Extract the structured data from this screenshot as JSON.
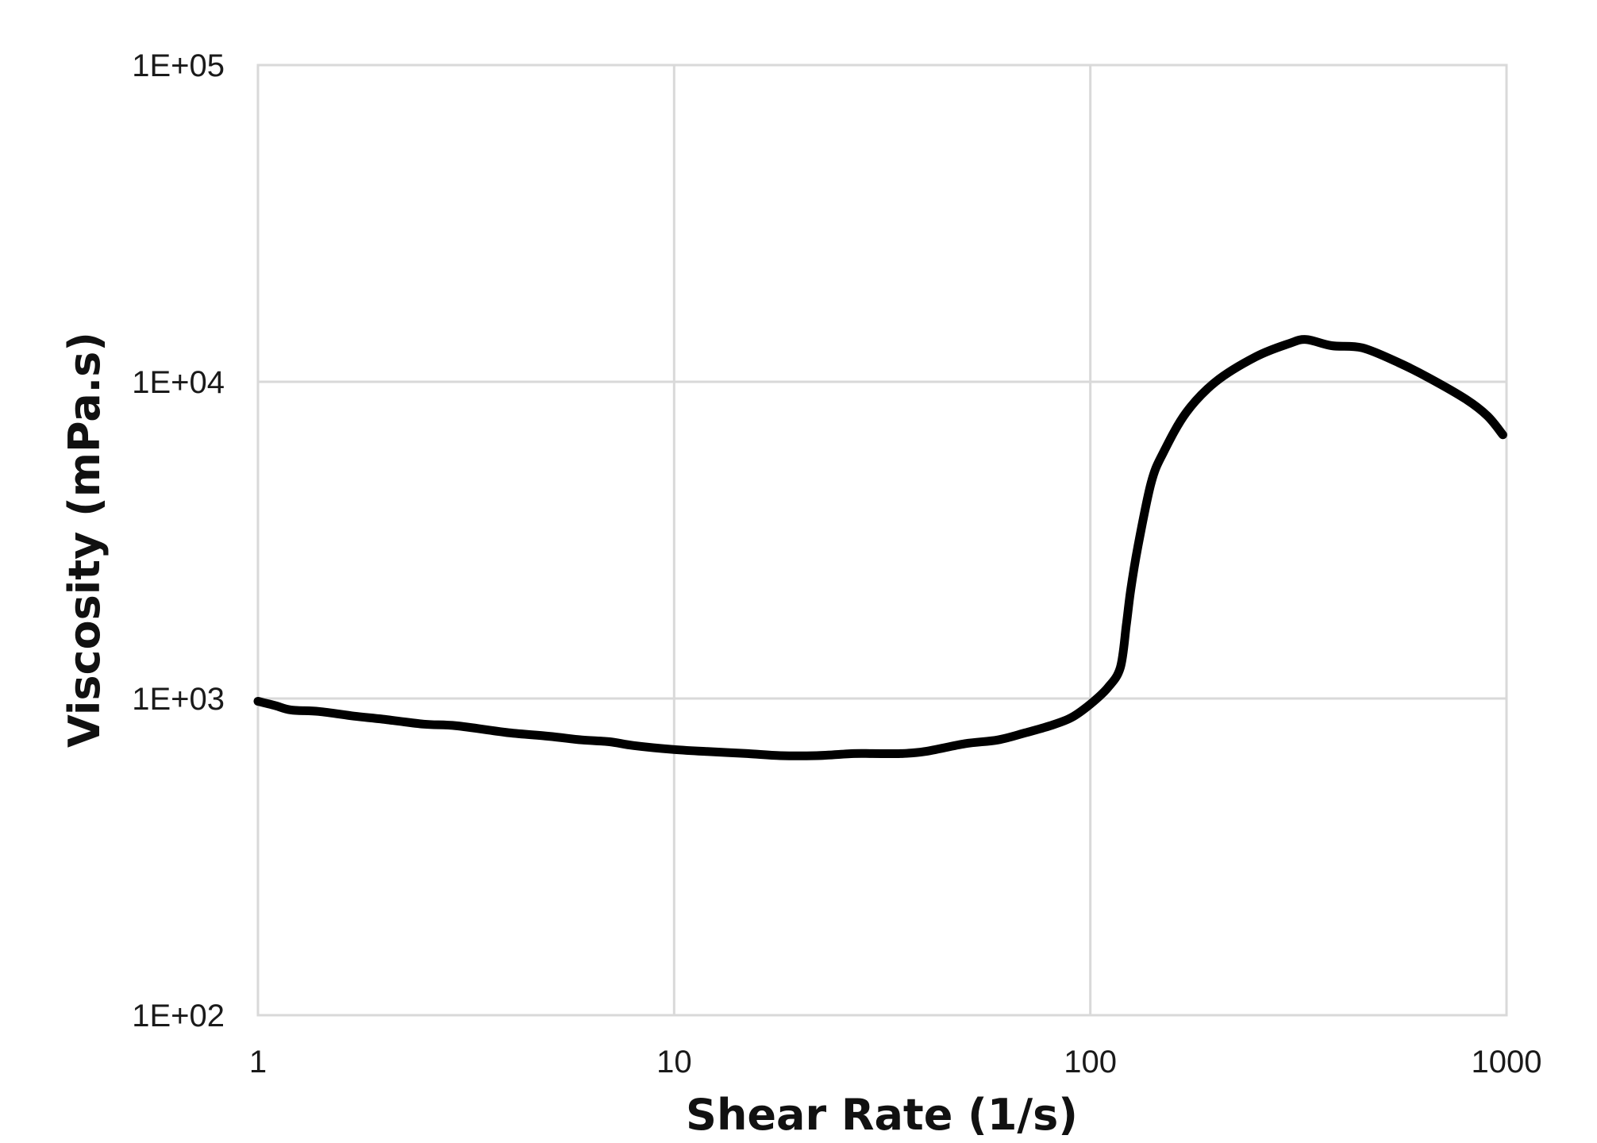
{
  "chart_data": {
    "type": "line",
    "xlabel": "Shear Rate (1/s)",
    "ylabel": "Viscosity (mPa.s)",
    "x_scale": "log",
    "y_scale": "log",
    "xlim": [
      1,
      1000
    ],
    "ylim": [
      100,
      100000
    ],
    "x_ticks": [
      {
        "value": 1,
        "label": "1"
      },
      {
        "value": 10,
        "label": "10"
      },
      {
        "value": 100,
        "label": "100"
      },
      {
        "value": 1000,
        "label": "1000"
      }
    ],
    "y_ticks": [
      {
        "value": 100,
        "label": "1E+02"
      },
      {
        "value": 1000,
        "label": "1E+03"
      },
      {
        "value": 10000,
        "label": "1E+04"
      },
      {
        "value": 100000,
        "label": "1E+05"
      }
    ],
    "grid": true,
    "legend": "none",
    "series": [
      {
        "color": "#000000",
        "x": [
          1.0,
          1.1,
          1.2,
          1.4,
          1.7,
          2.0,
          2.5,
          3.0,
          4.0,
          5.0,
          6.0,
          7.0,
          8.0,
          10.0,
          12.0,
          15.0,
          18.0,
          22.0,
          27.0,
          30.0,
          35.0,
          40.0,
          50.0,
          60.0,
          70.0,
          80.0,
          90.0,
          100.0,
          110.0,
          118.0,
          122.0,
          125.0,
          130.0,
          140.0,
          150.0,
          170.0,
          200.0,
          250.0,
          300.0,
          330.0,
          380.0,
          450.0,
          550.0,
          650.0,
          800.0,
          900.0,
          980.0
        ],
        "y": [
          980,
          950,
          920,
          910,
          880,
          860,
          830,
          820,
          780,
          760,
          740,
          730,
          710,
          690,
          680,
          670,
          660,
          660,
          670,
          670,
          670,
          680,
          720,
          740,
          780,
          820,
          870,
          960,
          1080,
          1250,
          1700,
          2200,
          3000,
          4800,
          6000,
          8000,
          10000,
          12000,
          13200,
          13600,
          13000,
          12800,
          11500,
          10300,
          8800,
          7800,
          6800
        ]
      }
    ]
  }
}
